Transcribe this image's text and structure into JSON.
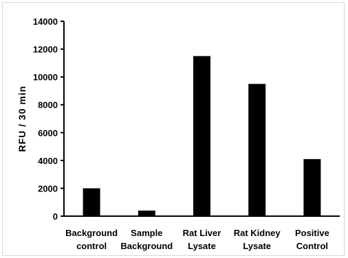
{
  "chart_data": {
    "type": "bar",
    "categories": [
      [
        "Background",
        "control"
      ],
      [
        "Sample",
        "Background"
      ],
      [
        "Rat Liver",
        "Lysate"
      ],
      [
        "Rat Kidney",
        "Lysate"
      ],
      [
        "Positive",
        "Control"
      ]
    ],
    "values": [
      2000,
      400,
      11500,
      9500,
      4100
    ],
    "title": "",
    "xlabel": "",
    "ylabel": "RFU / 30 min",
    "ylim": [
      0,
      14000
    ],
    "yticks": [
      "0",
      "2000",
      "4000",
      "6000",
      "8000",
      "10000",
      "12000",
      "14000"
    ],
    "bar_color": "#000000",
    "grid": false
  }
}
